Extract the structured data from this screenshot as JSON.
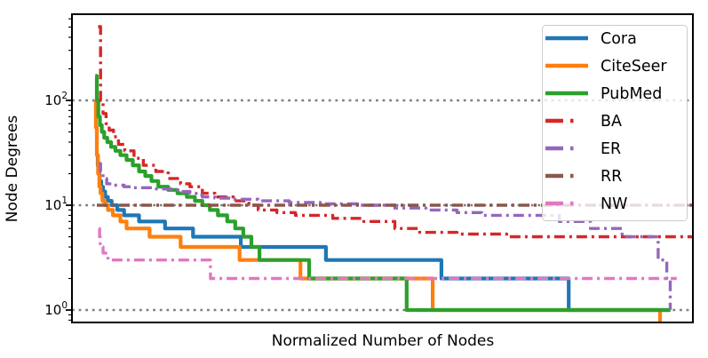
{
  "figure": {
    "background": "#ffffff",
    "frame_color": "#000000",
    "grid_color": "#7f7f7f",
    "legend_bg_alpha": 0.8,
    "legend_border": "#cccccc"
  },
  "chart_data": {
    "type": "line",
    "title": "",
    "xlabel": "Normalized Number of Nodes",
    "ylabel": "Node Degrees",
    "x_axis": {
      "range": [
        0,
        1
      ],
      "tick_labels": []
    },
    "y_axis": {
      "scale": "log",
      "range": [
        0.761,
        664
      ],
      "major_ticks": [
        1,
        10,
        100
      ],
      "tick_labels": [
        "10^0",
        "10^1",
        "10^2"
      ],
      "tick_base": "10",
      "tick_exponents": [
        0,
        1,
        2
      ],
      "minor_ticks_per_decade": [
        2,
        3,
        4,
        5,
        6,
        7,
        8,
        9
      ]
    },
    "grid": "horizontal dotted at each decade",
    "legend_position": "upper right",
    "legend_entries": [
      "Cora",
      "CiteSeer",
      "PubMed",
      "BA",
      "ER",
      "RR",
      "NW"
    ],
    "series": [
      {
        "name": "Cora",
        "color": "#1f77b4",
        "style": "solid",
        "points": [
          [
            0.04,
            30
          ],
          [
            0.0415,
            24
          ],
          [
            0.043,
            20
          ],
          [
            0.0445,
            17
          ],
          [
            0.047,
            15
          ],
          [
            0.05,
            13.5
          ],
          [
            0.0535,
            12
          ],
          [
            0.058,
            11
          ],
          [
            0.064,
            10
          ],
          [
            0.073,
            9
          ],
          [
            0.084,
            8
          ],
          [
            0.108,
            7
          ],
          [
            0.15,
            6
          ],
          [
            0.195,
            5
          ],
          [
            0.272,
            4
          ],
          [
            0.409,
            3
          ],
          [
            0.595,
            2
          ],
          [
            0.8,
            1
          ],
          [
            0.962,
            1
          ]
        ]
      },
      {
        "name": "CiteSeer",
        "color": "#ff7f0e",
        "style": "solid",
        "points": [
          [
            0.037,
            99
          ],
          [
            0.0385,
            55
          ],
          [
            0.04,
            30
          ],
          [
            0.042,
            20
          ],
          [
            0.044,
            15
          ],
          [
            0.046,
            13
          ],
          [
            0.049,
            11
          ],
          [
            0.053,
            10
          ],
          [
            0.058,
            9
          ],
          [
            0.066,
            8
          ],
          [
            0.078,
            7
          ],
          [
            0.088,
            6
          ],
          [
            0.125,
            5
          ],
          [
            0.175,
            4
          ],
          [
            0.27,
            3
          ],
          [
            0.368,
            2
          ],
          [
            0.581,
            1
          ],
          [
            0.947,
            0.761
          ]
        ]
      },
      {
        "name": "PubMed",
        "color": "#2ca02c",
        "style": "solid",
        "points": [
          [
            0.0375,
            171
          ],
          [
            0.04,
            100
          ],
          [
            0.0425,
            70
          ],
          [
            0.045,
            58
          ],
          [
            0.048,
            50
          ],
          [
            0.052,
            44
          ],
          [
            0.057,
            40
          ],
          [
            0.063,
            36
          ],
          [
            0.07,
            33
          ],
          [
            0.078,
            30
          ],
          [
            0.088,
            27
          ],
          [
            0.098,
            24
          ],
          [
            0.108,
            21
          ],
          [
            0.118,
            19
          ],
          [
            0.128,
            17
          ],
          [
            0.139,
            15
          ],
          [
            0.155,
            14
          ],
          [
            0.17,
            13
          ],
          [
            0.185,
            12
          ],
          [
            0.198,
            11
          ],
          [
            0.21,
            10
          ],
          [
            0.222,
            9
          ],
          [
            0.235,
            8
          ],
          [
            0.25,
            7
          ],
          [
            0.263,
            6
          ],
          [
            0.276,
            5
          ],
          [
            0.289,
            4
          ],
          [
            0.302,
            3
          ],
          [
            0.382,
            2
          ],
          [
            0.539,
            1
          ],
          [
            0.964,
            1
          ]
        ]
      },
      {
        "name": "BA",
        "color": "#d62728",
        "style": "dashdot",
        "points": [
          [
            0.042,
            505
          ],
          [
            0.046,
            100
          ],
          [
            0.05,
            75
          ],
          [
            0.055,
            60
          ],
          [
            0.06,
            52
          ],
          [
            0.067,
            45
          ],
          [
            0.075,
            38
          ],
          [
            0.085,
            33
          ],
          [
            0.1,
            28
          ],
          [
            0.115,
            24
          ],
          [
            0.135,
            21
          ],
          [
            0.155,
            18
          ],
          [
            0.175,
            16
          ],
          [
            0.19,
            15
          ],
          [
            0.21,
            13
          ],
          [
            0.23,
            12
          ],
          [
            0.26,
            11
          ],
          [
            0.285,
            10
          ],
          [
            0.3,
            9
          ],
          [
            0.33,
            8.5
          ],
          [
            0.36,
            8
          ],
          [
            0.42,
            7.5
          ],
          [
            0.47,
            7
          ],
          [
            0.52,
            6
          ],
          [
            0.56,
            5.5
          ],
          [
            0.62,
            5.3
          ],
          [
            0.7,
            5
          ],
          [
            1.0,
            5
          ]
        ]
      },
      {
        "name": "ER",
        "color": "#9467bd",
        "style": "dashdot",
        "points": [
          [
            0.043,
            25
          ],
          [
            0.046,
            21
          ],
          [
            0.05,
            18
          ],
          [
            0.056,
            16
          ],
          [
            0.068,
            15.5
          ],
          [
            0.084,
            15
          ],
          [
            0.1,
            14.7
          ],
          [
            0.13,
            14.3
          ],
          [
            0.16,
            14
          ],
          [
            0.177,
            13.5
          ],
          [
            0.19,
            13
          ],
          [
            0.2,
            12.5
          ],
          [
            0.21,
            12
          ],
          [
            0.23,
            11.7
          ],
          [
            0.26,
            11.4
          ],
          [
            0.3,
            11
          ],
          [
            0.35,
            10.6
          ],
          [
            0.4,
            10.3
          ],
          [
            0.46,
            10
          ],
          [
            0.52,
            9.4
          ],
          [
            0.57,
            9
          ],
          [
            0.62,
            8.5
          ],
          [
            0.66,
            8
          ],
          [
            0.785,
            7
          ],
          [
            0.835,
            6
          ],
          [
            0.886,
            5
          ],
          [
            0.944,
            3
          ],
          [
            0.958,
            2
          ],
          [
            0.9635,
            1
          ]
        ]
      },
      {
        "name": "RR",
        "color": "#8c564b",
        "style": "dashdot",
        "points": [
          [
            0.04,
            10
          ],
          [
            1.0,
            10
          ]
        ]
      },
      {
        "name": "NW",
        "color": "#e377c2",
        "style": "dashdot",
        "points": [
          [
            0.0435,
            6
          ],
          [
            0.0445,
            5
          ],
          [
            0.0455,
            4
          ],
          [
            0.05,
            3.5
          ],
          [
            0.0545,
            3.35
          ],
          [
            0.058,
            3
          ],
          [
            0.223,
            2
          ],
          [
            0.974,
            2
          ]
        ]
      }
    ]
  }
}
